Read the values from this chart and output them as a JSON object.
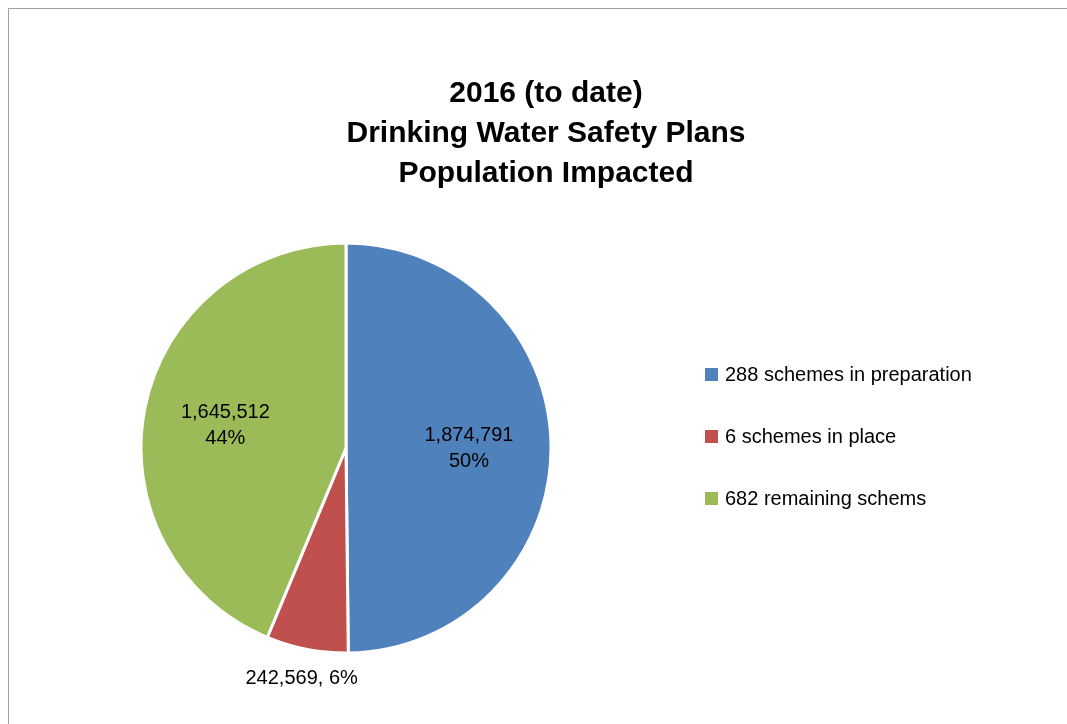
{
  "chart_data": {
    "type": "pie",
    "title": "2016 (to date)\nDrinking Water Safety Plans\nPopulation Impacted",
    "categories": [
      "288 schemes in preparation",
      "6 schemes in place",
      "682 remaining schems"
    ],
    "values": [
      1874791,
      242569,
      1645512
    ],
    "colors": [
      "#4f81bd",
      "#c0504d",
      "#9bbb59"
    ],
    "value_labels": [
      "1,874,791\n50%",
      "242,569, 6%",
      "1,645,512\n44%"
    ],
    "legend": "right"
  }
}
